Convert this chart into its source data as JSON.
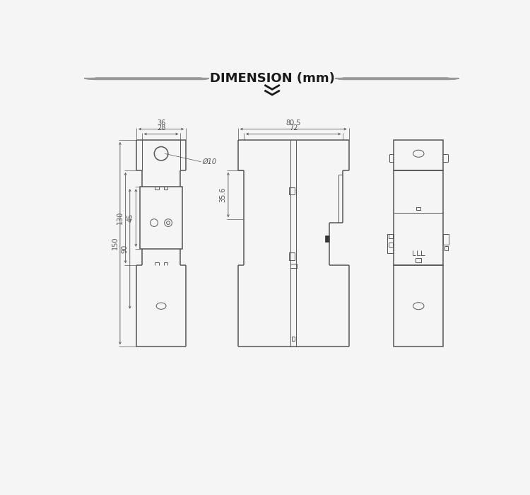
{
  "title": "DIMENSION (mm)",
  "title_fontsize": 13,
  "bg_color": "#f5f5f5",
  "line_color": "#555555",
  "dim_color": "#555555",
  "annotations": {
    "dim_36": "36",
    "dim_28": "28",
    "dim_150": "150",
    "dim_130": "130",
    "dim_90": "90",
    "dim_45": "45",
    "dim_phi10": "Ø10",
    "dim_80_5": "80.5",
    "dim_72": "72",
    "dim_35_6": "35.6"
  },
  "lw_body": 1.1,
  "lw_detail": 0.7,
  "lw_dim": 0.6,
  "fs_dim": 7
}
